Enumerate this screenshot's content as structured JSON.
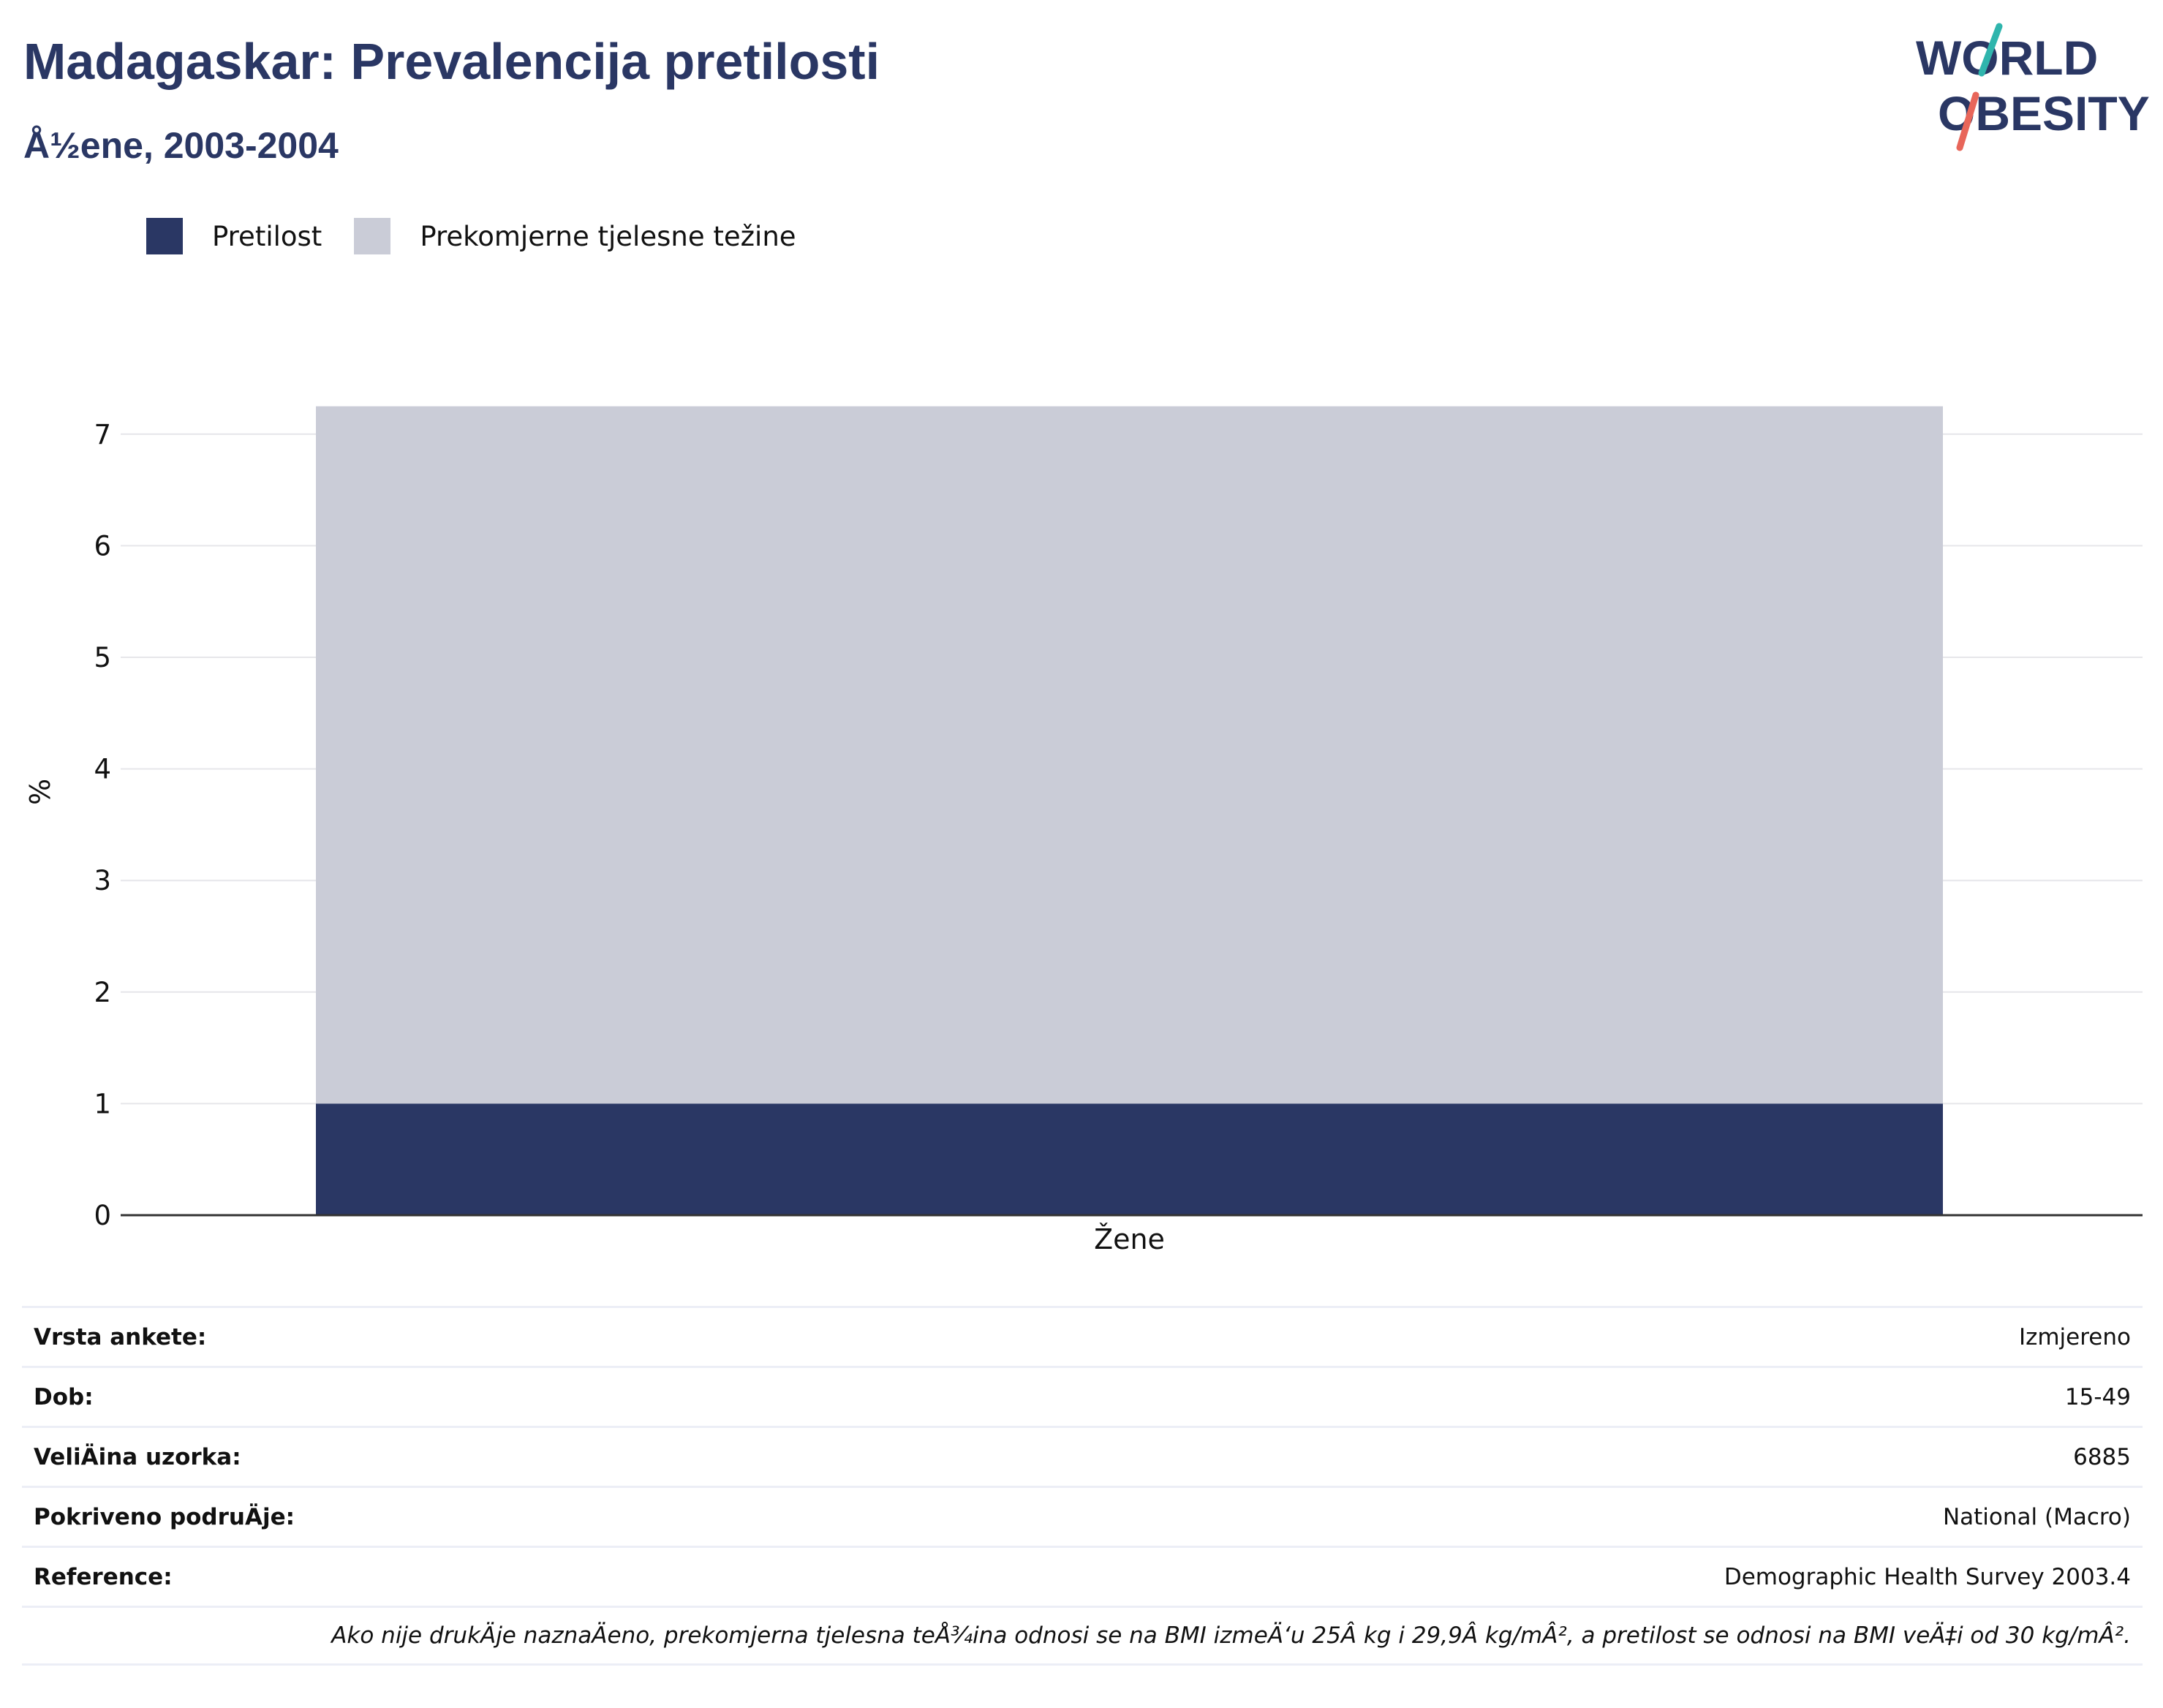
{
  "title": "Madagaskar: Prevalencija pretilosti",
  "subtitle": "Å½ene, 2003-2004",
  "logo": {
    "line1": "WORLD",
    "line2": "OBESITY"
  },
  "colors": {
    "obesity": "#2a3764",
    "overweight": "#caccd7",
    "title": "#2a3764",
    "logo_teal": "#2fb5ad",
    "logo_coral": "#e8665a"
  },
  "legend": [
    {
      "label": "Pretilost",
      "color": "#2a3764"
    },
    {
      "label": "Prekomjerne tjelesne težine",
      "color": "#caccd7"
    }
  ],
  "chart_data": {
    "type": "bar",
    "stacked": true,
    "categories": [
      "Žene"
    ],
    "series": [
      {
        "name": "Pretilost",
        "values": [
          1.0
        ]
      },
      {
        "name": "Prekomjerne tjelesne težine",
        "values": [
          6.25
        ]
      }
    ],
    "ylabel": "%",
    "ylim": [
      0,
      7.5
    ],
    "yticks": [
      0,
      1,
      2,
      3,
      4,
      5,
      6,
      7
    ],
    "grid": true,
    "legend_position": "top-left"
  },
  "info": [
    {
      "label": "Vrsta ankete:",
      "value": "Izmjereno"
    },
    {
      "label": "Dob:",
      "value": "15-49"
    },
    {
      "label": "VeliÄ\u001fina uzorka:",
      "value": "6885"
    },
    {
      "label": "Pokriveno podruÄ\u001fje:",
      "value": "National (Macro)"
    },
    {
      "label": "Reference:",
      "value": "Demographic Health Survey 2003.4"
    }
  ],
  "note": "Ako nije drukÄ\u001fje naznaÄ\u001feno, prekomjerna tjelesna teÅ¾ina odnosi se na BMI izmeÄ‘u 25Â kg i 29,9Â kg/mÂ², a pretilost se odnosi na BMI veÄ‡i od 30 kg/mÂ²."
}
